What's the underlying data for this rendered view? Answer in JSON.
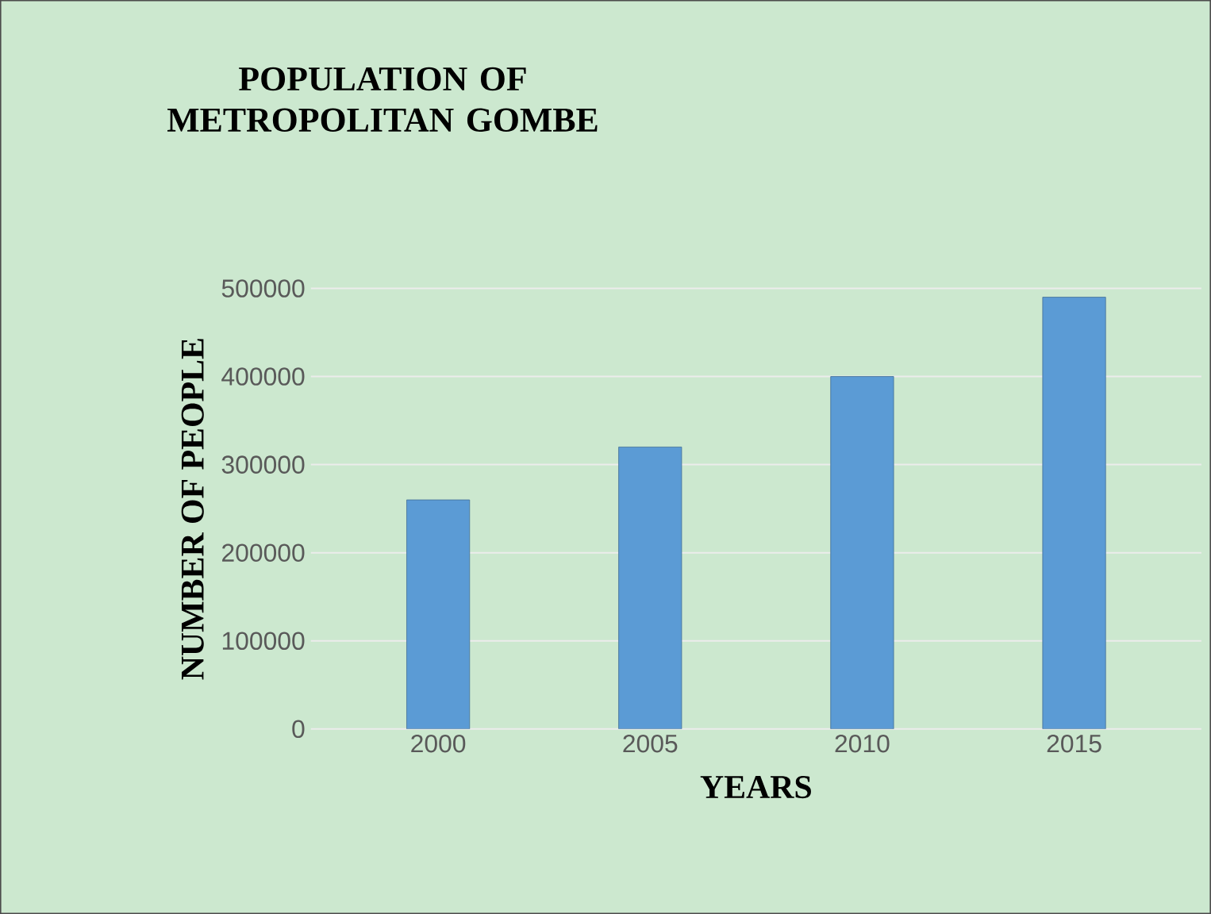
{
  "chart_data": {
    "type": "bar",
    "title": "POPULATION OF METROPOLITAN GOMBE",
    "xlabel": "YEARS",
    "ylabel": "NUMBER OF PEOPLE",
    "categories": [
      "2000",
      "2005",
      "2010",
      "2015"
    ],
    "values": [
      260000,
      320000,
      400000,
      490000
    ],
    "color": "#5b9bd5",
    "ylim": [
      0,
      500000
    ],
    "yticks": [
      0,
      100000,
      200000,
      300000,
      400000,
      500000
    ],
    "grid": "y"
  }
}
